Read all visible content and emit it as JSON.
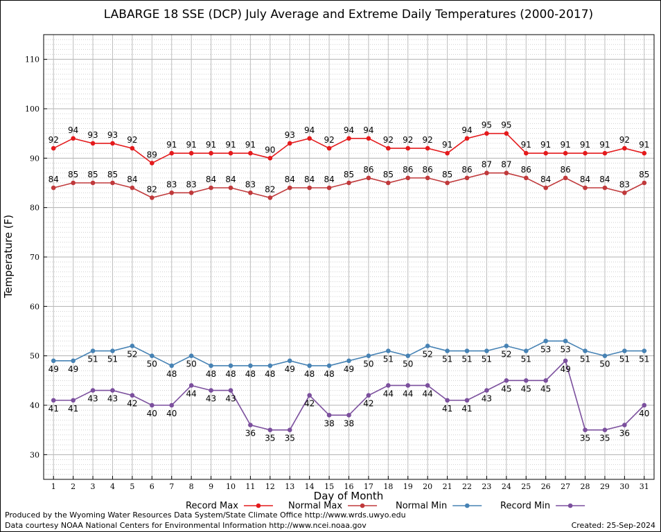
{
  "chart_data": {
    "type": "line",
    "title": "LABARGE 18 SSE (DCP) July Average and Extreme Daily Temperatures (2000-2017)",
    "xlabel": "Day of Month",
    "ylabel": "Temperature (F)",
    "x": [
      1,
      2,
      3,
      4,
      5,
      6,
      7,
      8,
      9,
      10,
      11,
      12,
      13,
      14,
      15,
      16,
      17,
      18,
      19,
      20,
      21,
      22,
      23,
      24,
      25,
      26,
      27,
      28,
      29,
      30,
      31
    ],
    "xlim": [
      0.5,
      31.5
    ],
    "ylim": [
      25,
      115
    ],
    "yticks": [
      30,
      40,
      50,
      60,
      70,
      80,
      90,
      100,
      110
    ],
    "grid": true,
    "legend_position": "bottom",
    "series": [
      {
        "name": "Record Max",
        "color": "#e41a1c",
        "values": [
          92,
          94,
          93,
          93,
          92,
          89,
          91,
          91,
          91,
          91,
          91,
          90,
          93,
          94,
          92,
          94,
          94,
          92,
          92,
          92,
          91,
          94,
          95,
          95,
          91,
          91,
          91,
          91,
          91,
          92,
          91
        ]
      },
      {
        "name": "Normal Max",
        "color": "#c0393b",
        "values": [
          84,
          85,
          85,
          85,
          84,
          82,
          83,
          83,
          84,
          84,
          83,
          82,
          84,
          84,
          84,
          85,
          86,
          85,
          86,
          86,
          85,
          86,
          87,
          87,
          86,
          84,
          86,
          84,
          84,
          83,
          85
        ]
      },
      {
        "name": "Normal Min",
        "color": "#4682b4",
        "values": [
          49,
          49,
          51,
          51,
          52,
          50,
          48,
          50,
          48,
          48,
          48,
          48,
          49,
          48,
          48,
          49,
          50,
          51,
          50,
          52,
          51,
          51,
          51,
          52,
          51,
          53,
          53,
          51,
          50,
          51,
          51
        ]
      },
      {
        "name": "Record Min",
        "color": "#7b4f9d",
        "values": [
          41,
          41,
          43,
          43,
          42,
          40,
          40,
          44,
          43,
          43,
          36,
          35,
          35,
          42,
          38,
          38,
          42,
          44,
          44,
          44,
          41,
          41,
          43,
          45,
          45,
          45,
          49,
          35,
          35,
          36,
          40
        ]
      }
    ]
  },
  "footer": {
    "produced_by": "Produced by the Wyoming Water Resources Data System/State Climate Office http://www.wrds.uwyo.edu",
    "courtesy": "Data courtesy NOAA National Centers for Environmental Information http://www.ncei.noaa.gov",
    "created": "Created:  25-Sep-2024"
  }
}
